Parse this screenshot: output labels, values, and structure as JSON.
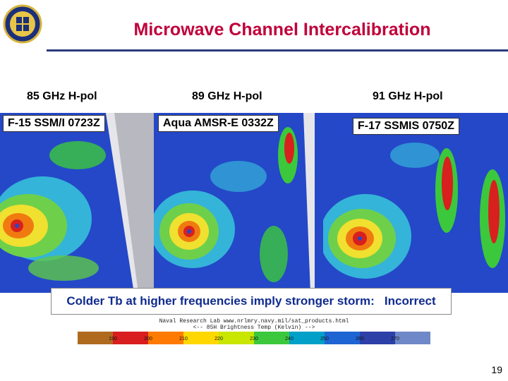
{
  "slide": {
    "title": "Microwave Channel Intercalibration",
    "page_number": "19"
  },
  "panels": [
    {
      "frequency": "85 GHz H-pol",
      "label": "F-15 SSM/I 0723Z"
    },
    {
      "frequency": "89 GHz H-pol",
      "label": "Aqua AMSR-E 0332Z"
    },
    {
      "frequency": "91 GHz H-pol",
      "label": "F-17 SSMIS 0750Z"
    }
  ],
  "caption": "Colder Tb at higher frequencies imply stronger storm:   Incorrect",
  "colorbar": {
    "header_line1": "Naval Research Lab  www.nrlmry.navy.mil/sat_products.html",
    "header_line2": "<--   85H Brightness Temp (Kelvin)   -->",
    "ticks": [
      "190",
      "200",
      "210",
      "220",
      "230",
      "240",
      "250",
      "260",
      "270"
    ],
    "colors": [
      "#b06a1e",
      "#d81e1e",
      "#ff7a00",
      "#ffd800",
      "#c8e600",
      "#3cc83c",
      "#00a0c8",
      "#1e64d2",
      "#2c40a8",
      "#6e88c8"
    ]
  },
  "colors": {
    "title": "#c0003a",
    "rule": "#2b3a7d",
    "caption_text": "#0f2b8f"
  },
  "icons": {
    "logo": "university-crest-icon"
  }
}
